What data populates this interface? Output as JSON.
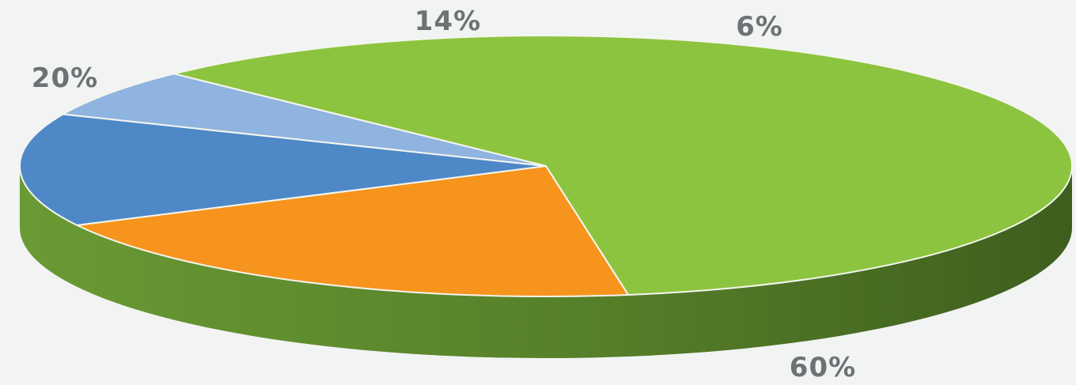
{
  "chart_data": {
    "type": "pie",
    "style": "3d-tilted",
    "title": "",
    "legend": "none",
    "slices": [
      {
        "value": 60,
        "label": "60%",
        "color": "#8dc43f",
        "side_color": "#5a8a2a"
      },
      {
        "value": 20,
        "label": "20%",
        "color": "#f7941d",
        "side_color": "#c46f10"
      },
      {
        "value": 14,
        "label": "14%",
        "color": "#4e88c7",
        "side_color": "#3a6a9c"
      },
      {
        "value": 6,
        "label": "6%",
        "color": "#8fb4df",
        "side_color": "#6f94bf"
      }
    ]
  }
}
